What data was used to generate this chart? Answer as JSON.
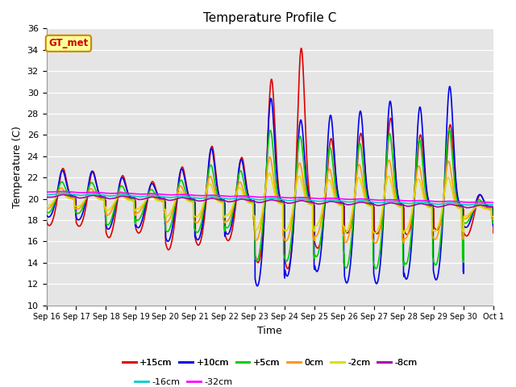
{
  "title": "Temperature Profile C",
  "xlabel": "Time",
  "ylabel": "Temperature (C)",
  "ylim": [
    10,
    36
  ],
  "yticks": [
    10,
    12,
    14,
    16,
    18,
    20,
    22,
    24,
    26,
    28,
    30,
    32,
    34,
    36
  ],
  "plot_bg": "#e5e5e5",
  "annotation_text": "GT_met",
  "annotation_box_color": "#ffff99",
  "annotation_text_color": "#cc0000",
  "annotation_border_color": "#cc8800",
  "series": [
    {
      "label": "+15cm",
      "color": "#dd0000",
      "lw": 1.2
    },
    {
      "label": "+10cm",
      "color": "#0000ee",
      "lw": 1.2
    },
    {
      "label": "+5cm",
      "color": "#00cc00",
      "lw": 1.2
    },
    {
      "label": "0cm",
      "color": "#ff9900",
      "lw": 1.2
    },
    {
      "label": "-2cm",
      "color": "#dddd00",
      "lw": 1.2
    },
    {
      "label": "-8cm",
      "color": "#aa00aa",
      "lw": 1.2
    },
    {
      "label": "-16cm",
      "color": "#00cccc",
      "lw": 1.2
    },
    {
      "label": "-32cm",
      "color": "#ff00ff",
      "lw": 1.2
    }
  ],
  "x_labels": [
    "Sep 16",
    "Sep 17",
    "Sep 18",
    "Sep 19",
    "Sep 20",
    "Sep 21",
    "Sep 22",
    "Sep 23",
    "Sep 24",
    "Sep 25",
    "Sep 26",
    "Sep 27",
    "Sep 28",
    "Sep 29",
    "Sep 30",
    "Oct 1"
  ],
  "legend_ncol": 6,
  "legend_ncol2": 2
}
